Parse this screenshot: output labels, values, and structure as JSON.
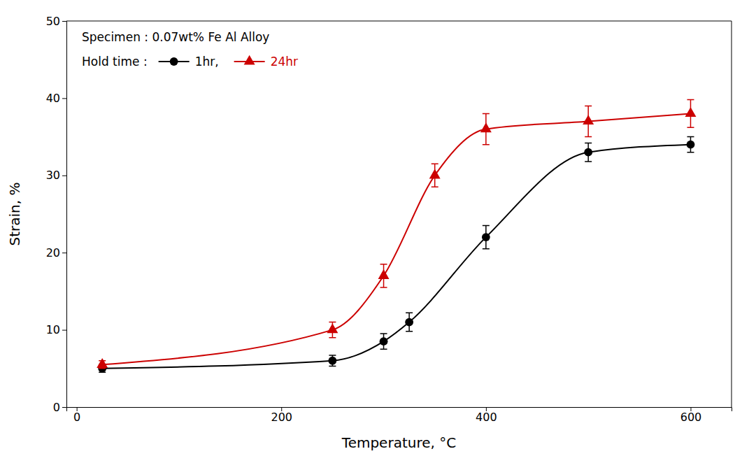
{
  "chart_data": {
    "type": "line",
    "x_label": "Temperature, °C",
    "y_label": "Strain, %",
    "annotations": [
      "Specimen : 0.07wt% Fe Al Alloy",
      "Hold time :"
    ],
    "series": [
      {
        "name": "1hr,",
        "color": "#000000",
        "marker": "circle",
        "x": [
          25,
          250,
          300,
          325,
          400,
          500,
          600
        ],
        "values": [
          5.0,
          6.0,
          8.5,
          11.0,
          22.0,
          33.0,
          34.0
        ],
        "errors": [
          0.5,
          0.7,
          1.0,
          1.2,
          1.5,
          1.2,
          1.0
        ]
      },
      {
        "name": "24hr",
        "color": "#cc0000",
        "marker": "triangle",
        "x": [
          25,
          250,
          300,
          350,
          400,
          500,
          600
        ],
        "values": [
          5.5,
          10.0,
          17.0,
          30.0,
          36.0,
          37.0,
          38.0
        ],
        "errors": [
          0.5,
          1.0,
          1.5,
          1.5,
          2.0,
          2.0,
          1.8
        ]
      }
    ],
    "xlim": [
      -10,
      640
    ],
    "ylim": [
      0,
      50
    ],
    "xticks": [
      0,
      200,
      400,
      600
    ],
    "yticks": [
      0,
      10,
      20,
      30,
      40,
      50
    ],
    "grid": false,
    "legend": "upper left"
  }
}
